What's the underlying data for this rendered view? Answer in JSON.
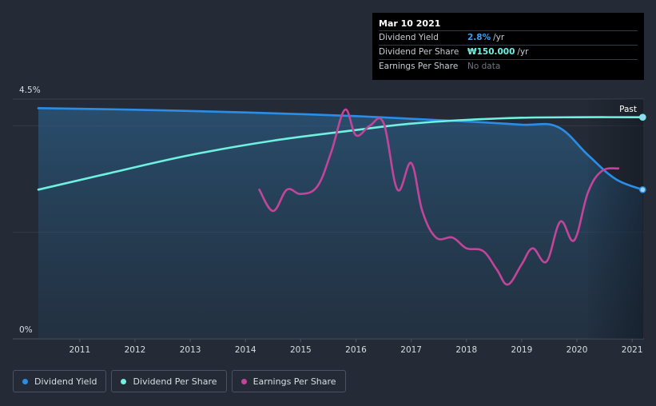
{
  "chart_data": {
    "type": "line",
    "y_axis": {
      "top_label": "4.5%",
      "bottom_label": "0%",
      "ylim": [
        0,
        4.5
      ],
      "unit": "%"
    },
    "x_axis": {
      "ticks": [
        "2011",
        "2012",
        "2013",
        "2014",
        "2015",
        "2016",
        "2017",
        "2018",
        "2019",
        "2020",
        "2021"
      ],
      "xlim": [
        2010.25,
        2021.2
      ]
    },
    "past_label": "Past",
    "past_region_start": 2020.2,
    "grid": "horizontal",
    "series": [
      {
        "name": "Dividend Yield",
        "color": "#2a8ee8",
        "area": true,
        "points": [
          [
            2010.25,
            4.33
          ],
          [
            2012.0,
            4.3
          ],
          [
            2014.0,
            4.25
          ],
          [
            2016.0,
            4.18
          ],
          [
            2018.0,
            4.08
          ],
          [
            2019.0,
            4.02
          ],
          [
            2019.65,
            3.98
          ],
          [
            2020.2,
            3.45
          ],
          [
            2020.7,
            3.0
          ],
          [
            2021.19,
            2.8
          ]
        ]
      },
      {
        "name": "Dividend Per Share",
        "color": "#6ff1e1",
        "area": false,
        "points": [
          [
            2010.25,
            2.8
          ],
          [
            2011.5,
            3.1
          ],
          [
            2013.0,
            3.45
          ],
          [
            2014.5,
            3.72
          ],
          [
            2016.0,
            3.92
          ],
          [
            2017.0,
            4.04
          ],
          [
            2018.0,
            4.11
          ],
          [
            2019.0,
            4.15
          ],
          [
            2020.0,
            4.16
          ],
          [
            2021.19,
            4.16
          ]
        ]
      },
      {
        "name": "Earnings Per Share",
        "color": "#c2459a",
        "area": false,
        "points": [
          [
            2014.25,
            2.8
          ],
          [
            2014.5,
            2.4
          ],
          [
            2014.75,
            2.8
          ],
          [
            2015.0,
            2.72
          ],
          [
            2015.3,
            2.86
          ],
          [
            2015.55,
            3.5
          ],
          [
            2015.8,
            4.3
          ],
          [
            2016.0,
            3.82
          ],
          [
            2016.25,
            4.0
          ],
          [
            2016.5,
            4.05
          ],
          [
            2016.75,
            2.8
          ],
          [
            2017.0,
            3.3
          ],
          [
            2017.2,
            2.4
          ],
          [
            2017.45,
            1.9
          ],
          [
            2017.75,
            1.9
          ],
          [
            2018.0,
            1.7
          ],
          [
            2018.3,
            1.65
          ],
          [
            2018.55,
            1.3
          ],
          [
            2018.75,
            1.02
          ],
          [
            2019.0,
            1.4
          ],
          [
            2019.2,
            1.7
          ],
          [
            2019.45,
            1.45
          ],
          [
            2019.7,
            2.2
          ],
          [
            2019.95,
            1.85
          ],
          [
            2020.2,
            2.75
          ],
          [
            2020.45,
            3.15
          ],
          [
            2020.75,
            3.2
          ]
        ]
      }
    ],
    "endpoint_markers": [
      "Dividend Yield",
      "Dividend Per Share"
    ]
  },
  "tooltip": {
    "date": "Mar 10 2021",
    "rows": [
      {
        "label": "Dividend Yield",
        "value": "2.8%",
        "unit": "/yr"
      },
      {
        "label": "Dividend Per Share",
        "value": "₩150.000",
        "unit": "/yr"
      },
      {
        "label": "Earnings Per Share",
        "value": "No data"
      }
    ]
  },
  "legend": {
    "items": [
      {
        "label": "Dividend Yield",
        "color": "#2a8ee8"
      },
      {
        "label": "Dividend Per Share",
        "color": "#6ff1e1"
      },
      {
        "label": "Earnings Per Share",
        "color": "#c2459a"
      }
    ]
  }
}
